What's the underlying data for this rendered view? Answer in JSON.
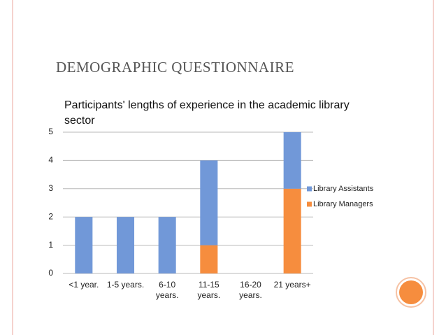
{
  "slide_title": "DEMOGRAPHIC QUESTIONNAIRE",
  "chart_data": {
    "type": "stacked_bar",
    "title": "Participants'  lengths of experience in the academic library sector",
    "categories": [
      "<1 year.",
      "1-5 years.",
      "6-10 years.",
      "11-15 years.",
      "16-20 years.",
      "21 years+"
    ],
    "series": [
      {
        "name": "Library Assistants",
        "color": "#7198d8",
        "values": [
          2,
          2,
          2,
          3,
          0,
          2
        ]
      },
      {
        "name": "Library Managers",
        "color": "#f68d3e",
        "values": [
          0,
          0,
          0,
          1,
          0,
          3
        ]
      }
    ],
    "stack_order": "reverse",
    "ylim": [
      0,
      5
    ],
    "yticks": [
      0,
      1,
      2,
      3,
      4,
      5
    ],
    "grid": true,
    "legend": "right"
  }
}
